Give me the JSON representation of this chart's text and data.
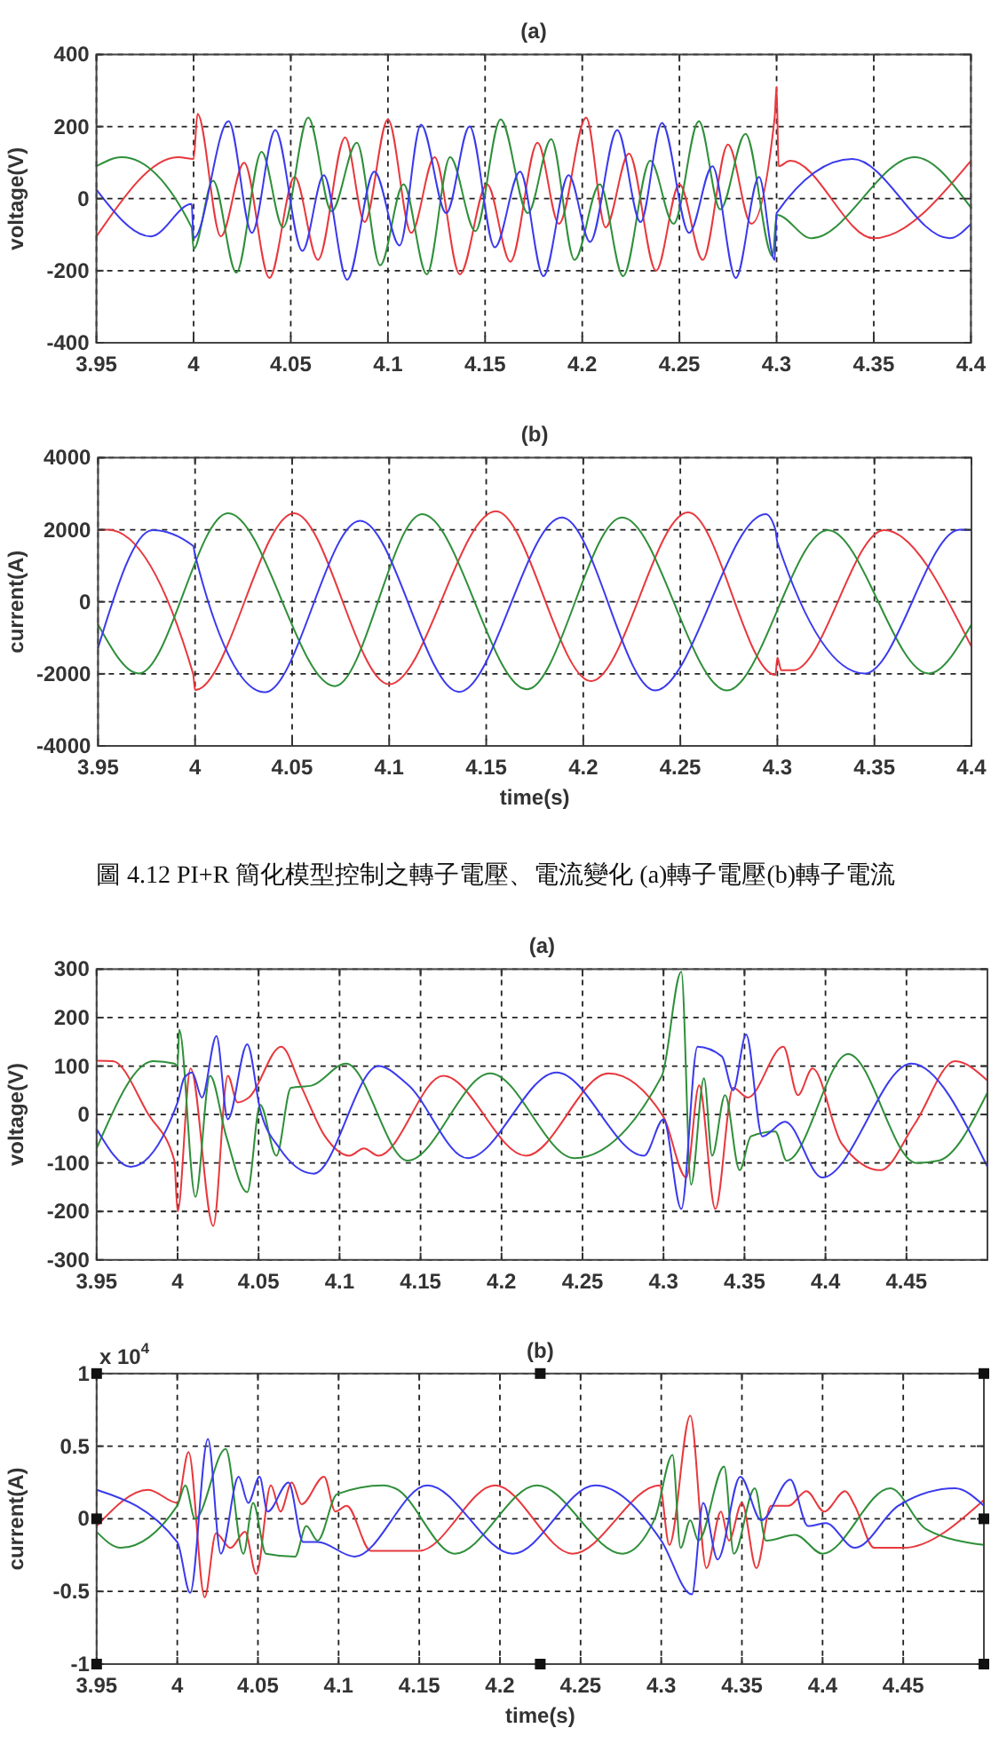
{
  "chart_data": [
    {
      "type": "line",
      "title": "(a)",
      "ylabel": "voltage(V)",
      "xlim": [
        3.95,
        4.4
      ],
      "ylim": [
        -400,
        400
      ],
      "xticks": [
        3.95,
        4,
        4.05,
        4.1,
        4.15,
        4.2,
        4.25,
        4.3,
        4.35,
        4.4
      ],
      "yticks": [
        -400,
        -200,
        0,
        200,
        400
      ],
      "grid": true,
      "series": [
        {
          "color": "#e8383d",
          "x": [
            3.95,
            3.992,
            4.0,
            4.002,
            4.014,
            4.026,
            4.039,
            4.052,
            4.064,
            4.078,
            4.088,
            4.1,
            4.112,
            4.124,
            4.137,
            4.151,
            4.163,
            4.177,
            4.188,
            4.202,
            4.212,
            4.224,
            4.238,
            4.25,
            4.262,
            4.275,
            4.287,
            4.299,
            4.3,
            4.301,
            4.307,
            4.35,
            4.4
          ],
          "values": [
            -105,
            115,
            110,
            235,
            -105,
            100,
            -220,
            60,
            -170,
            170,
            -65,
            220,
            -95,
            115,
            -210,
            40,
            -175,
            155,
            -70,
            225,
            -80,
            125,
            -200,
            40,
            -170,
            150,
            -70,
            225,
            310,
            90,
            105,
            -110,
            105
          ]
        },
        {
          "color": "#2f8f3a",
          "x": [
            3.95,
            3.963,
            3.999,
            4.0,
            4.01,
            4.022,
            4.035,
            4.046,
            4.059,
            4.071,
            4.084,
            4.096,
            4.108,
            4.12,
            4.132,
            4.145,
            4.158,
            4.172,
            4.184,
            4.196,
            4.209,
            4.221,
            4.235,
            4.247,
            4.26,
            4.271,
            4.284,
            4.298,
            4.3,
            4.318,
            4.371,
            4.4
          ],
          "values": [
            90,
            115,
            -80,
            -140,
            50,
            -205,
            130,
            -80,
            225,
            -35,
            155,
            -185,
            40,
            -210,
            115,
            -90,
            220,
            -40,
            165,
            -170,
            40,
            -215,
            105,
            -70,
            215,
            -30,
            180,
            -160,
            -45,
            -110,
            115,
            -25
          ]
        },
        {
          "color": "#3a3aee",
          "x": [
            3.95,
            3.978,
            3.999,
            4.0,
            4.018,
            4.03,
            4.042,
            4.056,
            4.067,
            4.079,
            4.093,
            4.106,
            4.117,
            4.13,
            4.142,
            4.155,
            4.168,
            4.18,
            4.193,
            4.204,
            4.218,
            4.23,
            4.241,
            4.255,
            4.267,
            4.279,
            4.291,
            4.299,
            4.3,
            4.339,
            4.389,
            4.4
          ],
          "values": [
            25,
            -105,
            -15,
            -110,
            215,
            -95,
            190,
            -145,
            65,
            -225,
            75,
            -130,
            205,
            -40,
            200,
            -135,
            75,
            -215,
            65,
            -120,
            190,
            -65,
            210,
            -95,
            90,
            -220,
            60,
            -170,
            -40,
            110,
            -110,
            -70
          ]
        }
      ]
    },
    {
      "type": "line",
      "title": "(b)",
      "xlabel": "time(s)",
      "ylabel": "current(A)",
      "annotations": [
        "圖 4.12 PI+R 簡化模型控制之轉子電壓、電流變化 (a)轉子電壓(b)轉子電流"
      ],
      "xlim": [
        3.95,
        4.4
      ],
      "ylim": [
        -4000,
        4000
      ],
      "xticks": [
        3.95,
        4,
        4.05,
        4.1,
        4.15,
        4.2,
        4.25,
        4.3,
        4.35,
        4.4
      ],
      "yticks": [
        -4000,
        -2000,
        0,
        2000,
        4000
      ],
      "grid": true,
      "series": [
        {
          "color": "#e8383d",
          "x": [
            3.95,
            3.955,
            3.999,
            4.0,
            4.051,
            4.1,
            4.155,
            4.204,
            4.254,
            4.299,
            4.3,
            4.302,
            4.308,
            4.355,
            4.4
          ],
          "values": [
            1990,
            2000,
            -2000,
            -2450,
            2460,
            -2290,
            2510,
            -2200,
            2480,
            -2030,
            -1550,
            -1900,
            -1900,
            1990,
            -1250
          ]
        },
        {
          "color": "#2f8f3a",
          "x": [
            3.95,
            3.971,
            4.017,
            4.072,
            4.117,
            4.171,
            4.22,
            4.274,
            4.326,
            4.378,
            4.4
          ],
          "values": [
            -630,
            -1990,
            2460,
            -2340,
            2430,
            -2430,
            2340,
            -2460,
            1990,
            -1990,
            -630
          ]
        },
        {
          "color": "#3a3aee",
          "x": [
            3.95,
            3.978,
            3.999,
            4.0,
            4.036,
            4.085,
            4.136,
            4.189,
            4.237,
            4.294,
            4.299,
            4.3,
            4.345,
            4.394,
            4.4
          ],
          "values": [
            -1280,
            1990,
            1550,
            1300,
            -2510,
            2250,
            -2500,
            2340,
            -2460,
            2430,
            2000,
            1650,
            -1990,
            2000,
            1990
          ]
        }
      ]
    },
    {
      "type": "line",
      "title": "(a)",
      "ylabel": "voltage(V)",
      "xlim": [
        3.95,
        4.5
      ],
      "ylim": [
        -300,
        300
      ],
      "xticks": [
        3.95,
        4,
        4.05,
        4.1,
        4.15,
        4.2,
        4.25,
        4.3,
        4.35,
        4.4,
        4.45
      ],
      "yticks": [
        -300,
        -200,
        -100,
        0,
        100,
        200,
        300
      ],
      "grid": true,
      "series": [
        {
          "color": "#e8383d",
          "x": [
            3.95,
            3.96,
            3.982,
            3.998,
            4.0,
            4.008,
            4.022,
            4.031,
            4.037,
            4.044,
            4.064,
            4.076,
            4.091,
            4.106,
            4.115,
            4.124,
            4.164,
            4.215,
            4.266,
            4.3,
            4.314,
            4.322,
            4.332,
            4.343,
            4.352,
            4.374,
            4.383,
            4.392,
            4.41,
            4.434,
            4.455,
            4.48,
            4.5
          ],
          "values": [
            111,
            110,
            0,
            -95,
            -200,
            95,
            -230,
            80,
            25,
            35,
            140,
            60,
            -45,
            -85,
            -70,
            -85,
            80,
            -85,
            85,
            -5,
            -130,
            60,
            -195,
            55,
            35,
            140,
            40,
            95,
            -60,
            -115,
            -20,
            110,
            70
          ]
        },
        {
          "color": "#2f8f3a",
          "x": [
            3.95,
            3.985,
            3.998,
            4.0,
            4.001,
            4.011,
            4.02,
            4.03,
            4.043,
            4.051,
            4.061,
            4.07,
            4.083,
            4.104,
            4.142,
            4.193,
            4.245,
            4.299,
            4.311,
            4.317,
            4.325,
            4.33,
            4.338,
            4.347,
            4.354,
            4.369,
            4.376,
            4.414,
            4.456,
            4.47,
            4.5
          ],
          "values": [
            -70,
            110,
            105,
            100,
            175,
            -170,
            80,
            -45,
            -160,
            20,
            -85,
            55,
            60,
            105,
            -95,
            85,
            -90,
            80,
            295,
            -145,
            75,
            -85,
            40,
            -115,
            -45,
            -35,
            -95,
            125,
            -100,
            -95,
            45
          ]
        },
        {
          "color": "#3a3aee",
          "x": [
            3.95,
            3.971,
            4.0,
            4.004,
            4.009,
            4.015,
            4.024,
            4.031,
            4.043,
            4.051,
            4.063,
            4.084,
            4.124,
            4.142,
            4.179,
            4.234,
            4.288,
            4.3,
            4.311,
            4.321,
            4.336,
            4.343,
            4.351,
            4.361,
            4.375,
            4.398,
            4.453,
            4.5
          ],
          "values": [
            -30,
            -108,
            25,
            75,
            87,
            35,
            162,
            -10,
            145,
            10,
            -70,
            -122,
            100,
            62,
            -90,
            87,
            -85,
            -10,
            -195,
            140,
            120,
            50,
            165,
            -45,
            -15,
            -130,
            105,
            -108
          ]
        }
      ]
    },
    {
      "type": "line",
      "title": "(b)",
      "xlabel": "time(s)",
      "ylabel": "current(A)",
      "annotations": [
        "x 10$^{4}$"
      ],
      "xlim": [
        3.95,
        4.5
      ],
      "ylim": [
        -1,
        1
      ],
      "xticks": [
        3.95,
        4,
        4.05,
        4.1,
        4.15,
        4.2,
        4.25,
        4.3,
        4.35,
        4.4,
        4.45
      ],
      "yticks": [
        -1,
        -0.5,
        0,
        0.5,
        1
      ],
      "grid": true,
      "series": [
        {
          "color": "#e8383d",
          "x": [
            3.95,
            3.982,
            4.0,
            4.007,
            4.017,
            4.024,
            4.033,
            4.042,
            4.049,
            4.058,
            4.064,
            4.071,
            4.077,
            4.091,
            4.098,
            4.105,
            4.12,
            4.15,
            4.197,
            4.245,
            4.299,
            4.305,
            4.318,
            4.328,
            4.337,
            4.342,
            4.35,
            4.359,
            4.368,
            4.379,
            4.39,
            4.401,
            4.414,
            4.42,
            4.432,
            4.45,
            4.5
          ],
          "values": [
            -0.05,
            0.2,
            0.11,
            0.46,
            -0.54,
            -0.1,
            -0.2,
            -0.09,
            -0.38,
            0.23,
            0.05,
            0.25,
            0.1,
            0.29,
            0.05,
            0.09,
            -0.22,
            -0.22,
            0.23,
            -0.24,
            0.23,
            -0.18,
            0.71,
            -0.34,
            0.05,
            -0.15,
            0.11,
            -0.34,
            0.09,
            0.09,
            0.19,
            0.05,
            0.19,
            0.09,
            -0.2,
            -0.2,
            0.13
          ]
        },
        {
          "color": "#2f8f3a",
          "x": [
            3.95,
            3.965,
            4.0,
            4.005,
            4.011,
            4.03,
            4.041,
            4.047,
            4.055,
            4.073,
            4.08,
            4.087,
            4.099,
            4.128,
            4.135,
            4.172,
            4.223,
            4.276,
            4.296,
            4.307,
            4.312,
            4.318,
            4.323,
            4.339,
            4.345,
            4.358,
            4.365,
            4.383,
            4.4,
            4.442,
            4.464,
            4.5
          ],
          "values": [
            -0.09,
            -0.2,
            0.09,
            0.23,
            0,
            0.48,
            -0.24,
            0.11,
            -0.24,
            -0.26,
            -0.05,
            -0.15,
            0.17,
            0.23,
            0.21,
            -0.24,
            0.23,
            -0.24,
            0,
            0.44,
            -0.2,
            -0.01,
            -0.15,
            0.36,
            -0.24,
            0.21,
            -0.15,
            -0.11,
            -0.24,
            0.21,
            -0.07,
            -0.18
          ]
        },
        {
          "color": "#3a3aee",
          "x": [
            3.95,
            4.0,
            4.008,
            4.019,
            4.027,
            4.038,
            4.044,
            4.051,
            4.056,
            4.069,
            4.078,
            4.087,
            4.11,
            4.155,
            4.208,
            4.259,
            4.3,
            4.319,
            4.326,
            4.335,
            4.349,
            4.362,
            4.38,
            4.391,
            4.402,
            4.42,
            4.447,
            4.482,
            4.5
          ],
          "values": [
            0.2,
            -0.16,
            -0.51,
            0.55,
            -0.24,
            0.29,
            0.11,
            0.29,
            0.05,
            0.25,
            -0.16,
            -0.16,
            -0.26,
            0.23,
            -0.24,
            0.23,
            -0.15,
            -0.52,
            0.11,
            -0.28,
            0.29,
            -0.01,
            0.27,
            -0.05,
            -0.03,
            -0.2,
            0.09,
            0.21,
            0.09
          ]
        }
      ]
    }
  ]
}
